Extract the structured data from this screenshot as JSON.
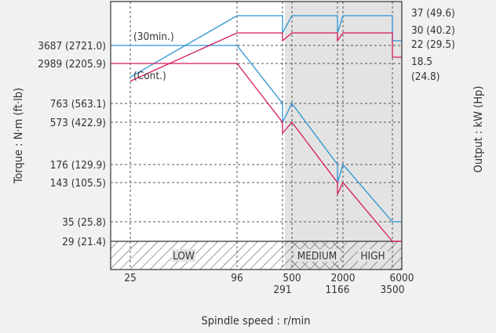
{
  "chart_data": {
    "type": "line",
    "title": "",
    "xlabel": "Spindle speed : r/min",
    "ylabel_left": "Torque : N·m (ft·lb)",
    "ylabel_right": "Output : kW (Hp)",
    "x_ticks": {
      "top_row": [
        "25",
        "96",
        "500",
        "2000",
        "6000"
      ],
      "bottom_row": [
        "291",
        "1166",
        "3500"
      ]
    },
    "torque_ticks": [
      "3687 (2721.0)",
      "2989 (2205.9)",
      "763 (563.1)",
      "573 (422.9)",
      "176 (129.9)",
      "143 (105.5)",
      "35 (25.8)",
      "29 (21.4)"
    ],
    "output_ticks": [
      "37 (49.6)",
      "30 (40.2)",
      "22 (29.5)",
      "18.5",
      "(24.8)"
    ],
    "gear_ranges": [
      "LOW",
      "MEDIUM",
      "HIGH"
    ],
    "series": [
      {
        "name": "(30min.)",
        "color": "#2a93d4",
        "torque": [
          [
            0,
            3687
          ],
          [
            96,
            3687
          ],
          [
            291,
            763
          ],
          [
            291,
            573
          ],
          [
            500,
            763
          ],
          [
            1166,
            176
          ],
          [
            1166,
            143
          ],
          [
            2000,
            176
          ],
          [
            3500,
            35
          ],
          [
            6000,
            35
          ]
        ],
        "output": [
          [
            25,
            9.6
          ],
          [
            96,
            37
          ],
          [
            291,
            37
          ],
          [
            291,
            30
          ],
          [
            500,
            37
          ],
          [
            1166,
            37
          ],
          [
            1166,
            30
          ],
          [
            2000,
            37
          ],
          [
            3500,
            37
          ],
          [
            3500,
            22
          ],
          [
            6000,
            22
          ]
        ]
      },
      {
        "name": "(Cont.)",
        "color": "#d6185a",
        "torque": [
          [
            0,
            2989
          ],
          [
            96,
            2989
          ],
          [
            291,
            573
          ],
          [
            291,
            429
          ],
          [
            500,
            573
          ],
          [
            1166,
            143
          ],
          [
            1166,
            105
          ],
          [
            2000,
            143
          ],
          [
            3500,
            29
          ],
          [
            6000,
            29
          ]
        ],
        "output": [
          [
            25,
            7.8
          ],
          [
            96,
            30
          ],
          [
            291,
            30
          ],
          [
            291,
            22
          ],
          [
            500,
            30
          ],
          [
            1166,
            30
          ],
          [
            1166,
            22
          ],
          [
            2000,
            30
          ],
          [
            3500,
            30
          ],
          [
            3500,
            18.5
          ],
          [
            6000,
            18.5
          ]
        ]
      }
    ]
  }
}
